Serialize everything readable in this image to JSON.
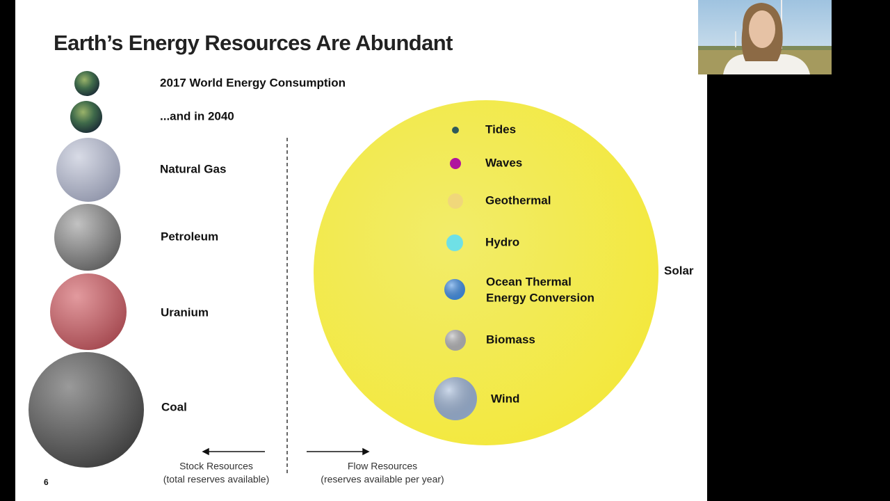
{
  "slide": {
    "title": "Earth’s Energy Resources Are Abundant",
    "page_number": "6",
    "stock_resources": {
      "items": [
        "2017 World Energy Consumption",
        "...and in 2040",
        "Natural Gas",
        "Petroleum",
        "Uranium",
        "Coal"
      ],
      "caption": [
        "Stock Resources",
        "(total reserves available)"
      ]
    },
    "flow_resources": {
      "items": [
        [
          "Tides"
        ],
        [
          "Waves"
        ],
        [
          "Geothermal"
        ],
        [
          "Hydro"
        ],
        [
          "Ocean Thermal",
          "Energy Conversion"
        ],
        [
          "Biomass"
        ],
        [
          "Wind"
        ]
      ],
      "solar": "Solar",
      "caption": [
        "Flow Resources",
        "(reserves available per year)"
      ]
    }
  }
}
